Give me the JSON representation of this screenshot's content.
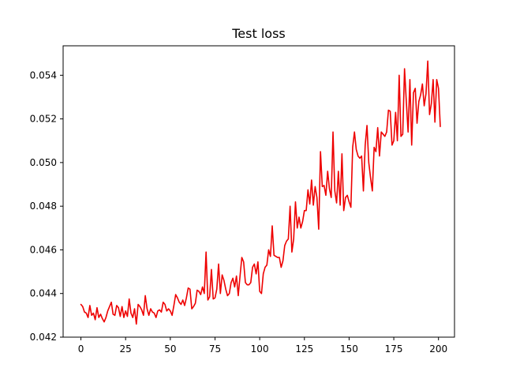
{
  "chart_data": {
    "type": "line",
    "title": "Test loss",
    "xlabel": "",
    "ylabel": "",
    "xlim": [
      -9.95,
      208.95
    ],
    "ylim": [
      0.042,
      0.05535
    ],
    "xticks": [
      0,
      25,
      50,
      75,
      100,
      125,
      150,
      175,
      200
    ],
    "xtick_labels": [
      "0",
      "25",
      "50",
      "75",
      "100",
      "125",
      "150",
      "175",
      "200"
    ],
    "yticks": [
      0.042,
      0.044,
      0.046,
      0.048,
      0.05,
      0.052,
      0.054
    ],
    "ytick_labels": [
      "0.042",
      "0.044",
      "0.046",
      "0.048",
      "0.050",
      "0.052",
      "0.054"
    ],
    "grid": false,
    "legend": "none",
    "series": [
      {
        "color": "#ee0000",
        "x_start": 0,
        "x_step": 1,
        "values": [
          0.0435,
          0.0434,
          0.04315,
          0.0431,
          0.0429,
          0.04345,
          0.043,
          0.0431,
          0.0428,
          0.04335,
          0.0429,
          0.04305,
          0.04285,
          0.0427,
          0.0429,
          0.0432,
          0.0434,
          0.0436,
          0.04305,
          0.043,
          0.04345,
          0.04335,
          0.04295,
          0.0434,
          0.0429,
          0.0432,
          0.04295,
          0.04375,
          0.0431,
          0.0429,
          0.0433,
          0.0426,
          0.0435,
          0.0434,
          0.04325,
          0.043,
          0.0439,
          0.0433,
          0.043,
          0.0433,
          0.04315,
          0.0431,
          0.0429,
          0.0432,
          0.04325,
          0.04315,
          0.0436,
          0.0435,
          0.0432,
          0.0433,
          0.0432,
          0.043,
          0.04345,
          0.04395,
          0.0438,
          0.0436,
          0.0435,
          0.0437,
          0.04345,
          0.0438,
          0.04425,
          0.0442,
          0.0433,
          0.0434,
          0.04355,
          0.04415,
          0.0441,
          0.04395,
          0.0443,
          0.044,
          0.0459,
          0.0437,
          0.04385,
          0.0451,
          0.04375,
          0.0438,
          0.0442,
          0.04535,
          0.044,
          0.04485,
          0.0446,
          0.0442,
          0.0439,
          0.044,
          0.0445,
          0.0447,
          0.0443,
          0.0448,
          0.0439,
          0.0448,
          0.04565,
          0.04545,
          0.0445,
          0.0444,
          0.0444,
          0.0445,
          0.0452,
          0.04535,
          0.0449,
          0.04545,
          0.0441,
          0.044,
          0.0449,
          0.0452,
          0.0453,
          0.046,
          0.0457,
          0.0471,
          0.04575,
          0.0457,
          0.04565,
          0.04565,
          0.0452,
          0.0455,
          0.0462,
          0.0464,
          0.0465,
          0.048,
          0.0459,
          0.0465,
          0.0482,
          0.047,
          0.0475,
          0.047,
          0.0473,
          0.0478,
          0.0478,
          0.04875,
          0.0481,
          0.0492,
          0.04805,
          0.0489,
          0.0484,
          0.04695,
          0.0505,
          0.0489,
          0.04895,
          0.0485,
          0.0496,
          0.0488,
          0.0484,
          0.0514,
          0.0487,
          0.04815,
          0.0496,
          0.04805,
          0.0504,
          0.0478,
          0.0484,
          0.0485,
          0.0482,
          0.04795,
          0.0507,
          0.0514,
          0.0506,
          0.0503,
          0.0502,
          0.0503,
          0.0487,
          0.0508,
          0.0517,
          0.05,
          0.0493,
          0.0487,
          0.0507,
          0.0505,
          0.0516,
          0.0503,
          0.0514,
          0.0513,
          0.0512,
          0.0514,
          0.0524,
          0.05235,
          0.0508,
          0.051,
          0.0523,
          0.051,
          0.054,
          0.0512,
          0.0513,
          0.0543,
          0.0528,
          0.0514,
          0.0538,
          0.0508,
          0.0532,
          0.0534,
          0.0518,
          0.0528,
          0.0531,
          0.0536,
          0.0526,
          0.05315,
          0.05465,
          0.0522,
          0.0527,
          0.0538,
          0.05185,
          0.0538,
          0.0534,
          0.05165
        ]
      }
    ]
  }
}
